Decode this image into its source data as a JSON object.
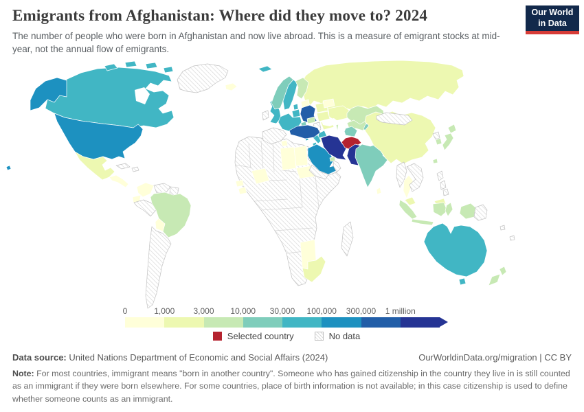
{
  "header": {
    "title": "Emigrants from Afghanistan: Where did they move to? 2024",
    "subtitle": "The number of people who were born in Afghanistan and now live abroad. This is a measure of emigrant stocks at mid-year, not the annual flow of emigrants.",
    "logo_line1": "Our World",
    "logo_line2": "in Data",
    "logo_bg": "#12294b",
    "logo_accent": "#d73c37"
  },
  "legend": {
    "ticks": [
      "0",
      "1,000",
      "3,000",
      "10,000",
      "30,000",
      "100,000",
      "300,000",
      "1 million"
    ],
    "selected_label": "Selected country",
    "no_data_label": "No data"
  },
  "chart_data": {
    "type": "heatmap",
    "subtype": "choropleth-world-map",
    "title": "Emigrants from Afghanistan: Where did they move to? 2024",
    "unit": "people (emigrant stock at mid-year)",
    "legend_position": "bottom",
    "bins": [
      "0–1,000",
      "1,000–3,000",
      "3,000–10,000",
      "10,000–30,000",
      "30,000–100,000",
      "100,000–300,000",
      "300,000–1 million",
      "1 million+"
    ],
    "bin_colors": [
      "#ffffd9",
      "#edf8b1",
      "#c7e9b4",
      "#7fcdbb",
      "#41b6c4",
      "#1d91c0",
      "#225ea8",
      "#253494"
    ],
    "selected_country": "Afghanistan",
    "selected_color": "#b5232f",
    "no_data_border": "#c2c2c2",
    "country_border": "#ffffff",
    "country_bin_assignments": {
      "united-states": 5,
      "canada": 4,
      "mexico": 1,
      "greenland": "no_data",
      "iceland": 0,
      "cuba": "no_data",
      "hispaniola": "no_data",
      "central-america": 0,
      "colombia": 0,
      "venezuela": "no_data",
      "guyanas": "no_data",
      "ecuador": 0,
      "peru": "no_data",
      "brazil": 2,
      "bolivia": 0,
      "argentina-chile": "no_data",
      "united-kingdom": 4,
      "ireland": "no_data",
      "norway": 3,
      "sweden": 4,
      "finland": 2,
      "baltics": 0,
      "denmark": 4,
      "benelux": 4,
      "germany": 6,
      "poland": 1,
      "belarus": 0,
      "ukraine": 1,
      "central-europe": 1,
      "romania-bulgaria": 1,
      "balkans": "no_data",
      "greece": 4,
      "france": 4,
      "spain-portugal": "no_data",
      "italy": 4,
      "switzerland": 3,
      "austria": 2,
      "svalbard": 4,
      "russia": 1,
      "kazakhstan": 2,
      "uzbekistan": 2,
      "turkmenistan": 3,
      "kyrgyzstan-tajikistan": 3,
      "caucasus": 2,
      "turkey": 6,
      "syria": 0,
      "iraq": 0,
      "saudi-arabia": 5,
      "yemen": "no_data",
      "oman": "no_data",
      "uae": 2,
      "iran": 7,
      "afghanistan": "selected",
      "pakistan": 7,
      "india": 3,
      "sri-lanka": 0,
      "china": 1,
      "mongolia": "no_data",
      "north-korea": "no_data",
      "south-korea": 2,
      "japan": 2,
      "taiwan": 2,
      "myanmar": "no_data",
      "thailand": 0,
      "indochina": "no_data",
      "malaysia": 1,
      "malaysia-borneo": 1,
      "sumatra": 2,
      "borneo": 2,
      "java": 2,
      "sulawesi": 2,
      "philippines": "no_data",
      "new-guinea-west": 2,
      "new-guinea-east": "no_data",
      "pacific-islands": "no_data",
      "australia": 4,
      "tasmania": 4,
      "new-zealand": 2,
      "africa": "no_data",
      "tunisia": 0,
      "libya": 0,
      "egypt": 0,
      "chad-sudan": 0,
      "mali": 0,
      "senegal": 0,
      "guinea": 0,
      "namibia": 0,
      "south-africa": 1,
      "madagascar": "no_data"
    }
  },
  "footer": {
    "source_label": "Data source:",
    "source_text": " United Nations Department of Economic and Social Affairs (2024)",
    "credit": "OurWorldinData.org/migration | CC BY",
    "note_label": "Note:",
    "note_text": " For most countries, immigrant means \"born in another country\". Someone who has gained citizenship in the country they live in is still counted as an immigrant if they were born elsewhere. For some countries, place of birth information is not available; in this case citizenship is used to define whether someone counts as an immigrant."
  }
}
